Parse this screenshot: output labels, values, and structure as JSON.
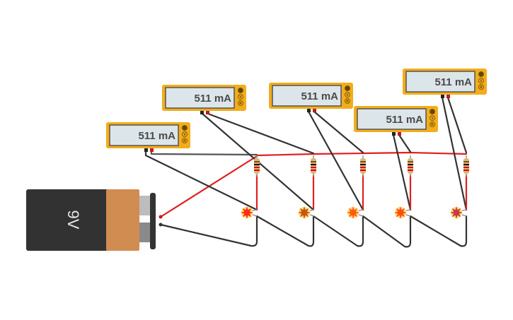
{
  "battery": {
    "label": "9V"
  },
  "multimeters": [
    {
      "reading": "511 mA",
      "modes": [
        "A",
        "V",
        "R"
      ]
    },
    {
      "reading": "511 mA",
      "modes": [
        "A",
        "V",
        "R"
      ]
    },
    {
      "reading": "511 mA",
      "modes": [
        "A",
        "V",
        "R"
      ]
    },
    {
      "reading": "511 mA",
      "modes": [
        "A",
        "V",
        "R"
      ]
    },
    {
      "reading": "511 mA",
      "modes": [
        "A",
        "V",
        "R"
      ]
    }
  ],
  "leds": [
    {
      "color": "#ff2a1a"
    },
    {
      "color": "#c8531a"
    },
    {
      "color": "#ff5a1a"
    },
    {
      "color": "#ff4a1a"
    },
    {
      "color": "#c83a4a"
    }
  ],
  "colors": {
    "meter_body": "#f2ad1c",
    "meter_screen": "#dce5ea",
    "wire_red": "#e02020",
    "wire_black": "#333333",
    "battery_body": "#323232",
    "battery_label": "#d18c52"
  }
}
